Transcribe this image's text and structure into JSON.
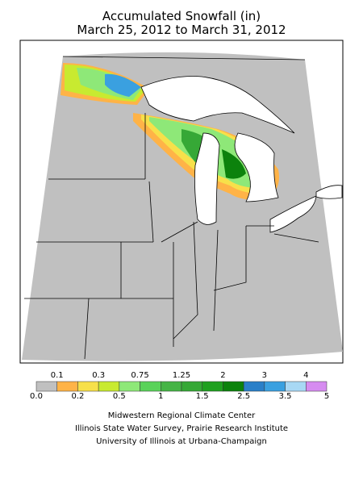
{
  "title": [
    "Accumulated Snowfall (in)",
    "March 25, 2012 to March 31, 2012"
  ],
  "legend": {
    "labels": [
      "0.0",
      "0.1",
      "0.2",
      "0.3",
      "0.5",
      "0.75",
      "1",
      "1.25",
      "1.5",
      "2",
      "2.5",
      "3",
      "3.5",
      "4",
      "5"
    ],
    "colors": [
      "#c0c0c0",
      "#ffb347",
      "#f7e04a",
      "#c8ea30",
      "#8ee878",
      "#5ad25a",
      "#46b446",
      "#36a836",
      "#20a020",
      "#0c820c",
      "#2a7fc8",
      "#3aa0e0",
      "#a8d8f4",
      "#d68cf0"
    ]
  },
  "credits": [
    "Midwestern Regional Climate Center",
    "Illinois State Water Survey, Prairie Research Institute",
    "University of Illinois at Urbana-Champaign"
  ]
}
